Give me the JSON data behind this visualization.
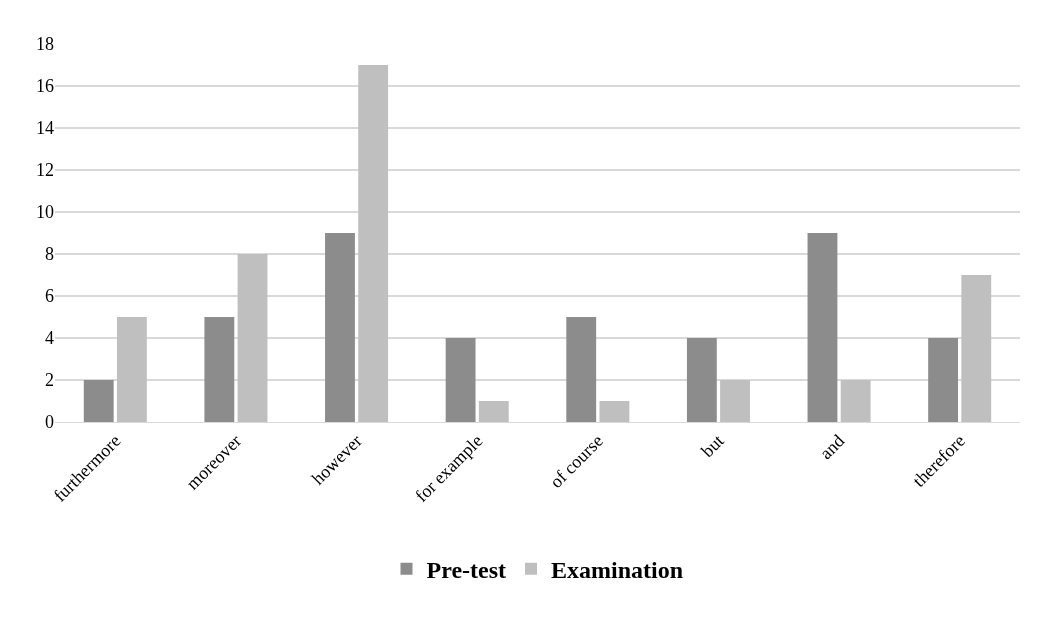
{
  "chart_data": {
    "type": "bar",
    "categories": [
      "furthermore",
      "moreover",
      "however",
      "for example",
      "of course",
      "but",
      "and",
      "therefore"
    ],
    "series": [
      {
        "name": "Pre-test",
        "color": "#8c8c8c",
        "values": [
          2,
          5,
          9,
          4,
          5,
          4,
          9,
          4
        ]
      },
      {
        "name": "Examination",
        "color": "#bfbfbf",
        "values": [
          5,
          8,
          17,
          1,
          1,
          2,
          2,
          7
        ]
      }
    ],
    "ylim": [
      0,
      18
    ],
    "yticks": [
      0,
      2,
      4,
      6,
      8,
      10,
      12,
      14,
      16,
      18
    ],
    "grid": "y",
    "legend": "bottom"
  }
}
